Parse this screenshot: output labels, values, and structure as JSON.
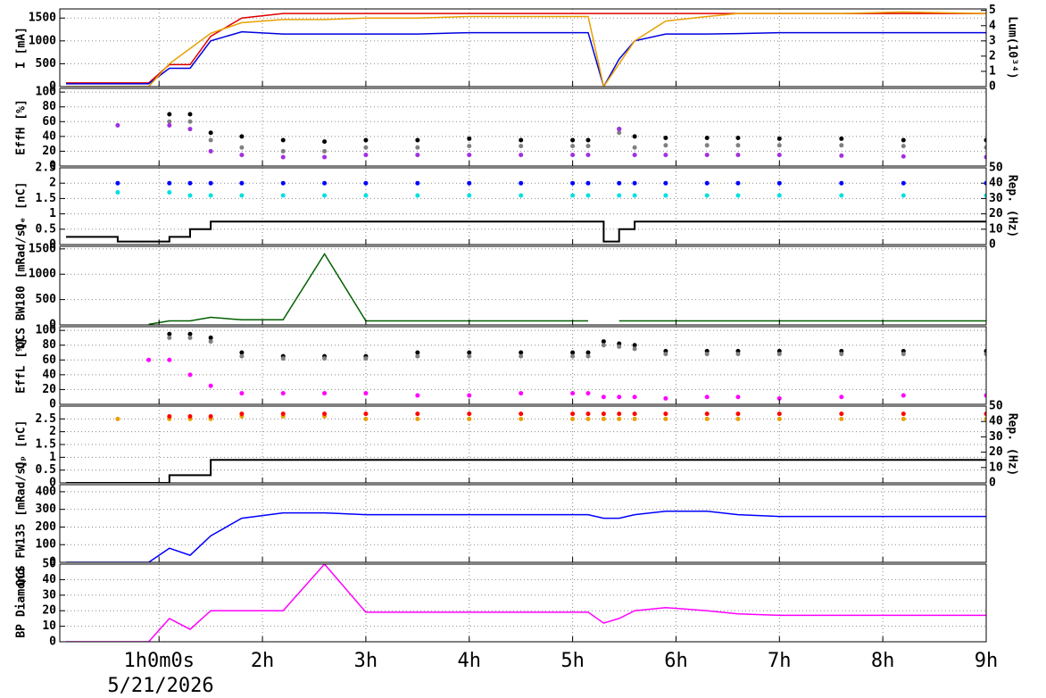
{
  "chart_data": [
    {
      "type": "line",
      "ylabel": "I [mA]",
      "y2label": "Lum(10³⁴)",
      "x": [
        0.1,
        0.6,
        0.9,
        1.1,
        1.3,
        1.5,
        1.8,
        2.2,
        2.6,
        3.0,
        3.5,
        4.0,
        4.5,
        5.0,
        5.15,
        5.3,
        5.45,
        5.6,
        5.9,
        6.3,
        6.6,
        7.0,
        7.6,
        8.2,
        9.0
      ],
      "xlim": [
        0.04,
        9
      ],
      "ylim": [
        0,
        1700
      ],
      "yticks": [
        0,
        500,
        1000,
        1500
      ],
      "y2lim": [
        0,
        5.1
      ],
      "y2ticks": [
        0,
        1,
        2,
        3,
        4,
        5
      ],
      "grid": true,
      "series": [
        {
          "color": "#e00000",
          "marker": "line",
          "values": [
            80,
            80,
            80,
            480,
            480,
            1100,
            1500,
            1600,
            1600,
            1600,
            1600,
            1600,
            1600,
            1600,
            1600,
            1600,
            1600,
            1600,
            1600,
            1600,
            1600,
            1600,
            1600,
            1600,
            1600
          ]
        },
        {
          "color": "#0000e0",
          "marker": "line",
          "values": [
            60,
            60,
            60,
            400,
            400,
            1000,
            1200,
            1150,
            1150,
            1150,
            1150,
            1180,
            1180,
            1180,
            1180,
            0,
            600,
            1000,
            1150,
            1150,
            1160,
            1180,
            1180,
            1180,
            1180
          ]
        },
        {
          "color": "#e8a000",
          "marker": "line",
          "axis": "y2",
          "values": [
            0,
            0,
            0,
            1.5,
            2.5,
            3.5,
            4.2,
            4.4,
            4.4,
            4.5,
            4.5,
            4.6,
            4.6,
            4.6,
            4.6,
            0,
            1.5,
            3.0,
            4.3,
            4.6,
            4.8,
            4.8,
            4.8,
            4.9,
            4.8
          ]
        }
      ]
    },
    {
      "type": "line",
      "ylabel": "EffH [%]",
      "x": [
        0.1,
        0.6,
        0.9,
        1.1,
        1.3,
        1.5,
        1.8,
        2.2,
        2.6,
        3.0,
        3.5,
        4.0,
        4.5,
        5.0,
        5.15,
        5.3,
        5.45,
        5.6,
        5.9,
        6.3,
        6.6,
        7.0,
        7.6,
        8.2,
        9.0
      ],
      "xlim": [
        0.04,
        9
      ],
      "ylim": [
        0,
        105
      ],
      "yticks": [
        0,
        20,
        40,
        60,
        80,
        100
      ],
      "grid": true,
      "series": [
        {
          "color": "#000000",
          "marker": "dot",
          "values": [
            null,
            null,
            null,
            70,
            70,
            45,
            40,
            35,
            33,
            35,
            35,
            37,
            35,
            35,
            35,
            null,
            50,
            40,
            38,
            38,
            38,
            37,
            37,
            35,
            35
          ]
        },
        {
          "color": "#808080",
          "marker": "dot",
          "values": [
            null,
            null,
            null,
            60,
            60,
            35,
            25,
            20,
            20,
            25,
            25,
            27,
            27,
            27,
            27,
            null,
            45,
            25,
            28,
            28,
            28,
            28,
            28,
            27,
            25
          ]
        },
        {
          "color": "#a030e0",
          "marker": "dot",
          "values": [
            null,
            55,
            null,
            55,
            50,
            20,
            15,
            12,
            12,
            15,
            15,
            15,
            15,
            15,
            15,
            null,
            50,
            15,
            15,
            15,
            15,
            15,
            14,
            13,
            12
          ]
        }
      ]
    },
    {
      "type": "line",
      "ylabel": "Qₑ [nC]",
      "y2label": "Rep. (Hz)",
      "x": [
        0.1,
        0.6,
        0.9,
        1.1,
        1.3,
        1.5,
        1.8,
        2.2,
        2.6,
        3.0,
        3.5,
        4.0,
        4.5,
        5.0,
        5.15,
        5.3,
        5.45,
        5.6,
        5.9,
        6.3,
        6.6,
        7.0,
        7.6,
        8.2,
        9.0
      ],
      "xlim": [
        0.04,
        9
      ],
      "ylim": [
        0,
        2.5
      ],
      "yticks": [
        0,
        0.5,
        1,
        1.5,
        2,
        2.5
      ],
      "y2lim": [
        0,
        50
      ],
      "y2ticks": [
        0,
        10,
        20,
        30,
        40,
        50
      ],
      "grid": true,
      "series": [
        {
          "color": "#0000ff",
          "marker": "dot",
          "values": [
            null,
            2.0,
            null,
            2.0,
            2.0,
            2.0,
            2.0,
            2.0,
            2.0,
            2.0,
            2.0,
            2.0,
            2.0,
            2.0,
            2.0,
            null,
            2.0,
            2.0,
            2.0,
            2.0,
            2.0,
            2.0,
            2.0,
            2.0,
            2.0
          ]
        },
        {
          "color": "#00e0e0",
          "marker": "dot",
          "values": [
            null,
            1.7,
            null,
            1.7,
            1.6,
            1.6,
            1.6,
            1.6,
            1.6,
            1.6,
            1.6,
            1.6,
            1.6,
            1.6,
            1.6,
            null,
            1.6,
            1.6,
            1.6,
            1.6,
            1.6,
            1.6,
            1.6,
            1.6,
            1.6
          ]
        },
        {
          "color": "#000000",
          "marker": "step",
          "axis": "y2",
          "values": [
            5,
            2,
            2,
            5,
            10,
            15,
            15,
            15,
            15,
            15,
            15,
            15,
            15,
            15,
            15,
            2,
            10,
            15,
            15,
            15,
            15,
            15,
            15,
            15,
            15
          ]
        }
      ]
    },
    {
      "type": "line",
      "ylabel": "QCS BW180 [mRad/s]",
      "x": [
        0.1,
        0.6,
        0.9,
        1.1,
        1.3,
        1.5,
        1.8,
        2.2,
        2.6,
        3.0,
        3.5,
        4.0,
        4.5,
        5.0,
        5.15,
        5.3,
        5.45,
        5.6,
        5.9,
        6.3,
        6.6,
        7.0,
        7.6,
        8.2,
        9.0
      ],
      "xlim": [
        0.04,
        9
      ],
      "ylim": [
        0,
        1550
      ],
      "yticks": [
        0,
        500,
        1000,
        1500
      ],
      "grid": true,
      "series": [
        {
          "color": "#006000",
          "marker": "line",
          "values": [
            null,
            null,
            10,
            80,
            80,
            150,
            100,
            100,
            1400,
            80,
            80,
            80,
            80,
            80,
            80,
            null,
            80,
            80,
            80,
            80,
            80,
            80,
            80,
            80,
            80
          ]
        }
      ]
    },
    {
      "type": "line",
      "ylabel": "EffL [%]",
      "x": [
        0.1,
        0.6,
        0.9,
        1.1,
        1.3,
        1.5,
        1.8,
        2.2,
        2.6,
        3.0,
        3.5,
        4.0,
        4.5,
        5.0,
        5.15,
        5.3,
        5.45,
        5.6,
        5.9,
        6.3,
        6.6,
        7.0,
        7.6,
        8.2,
        9.0
      ],
      "xlim": [
        0.04,
        9
      ],
      "ylim": [
        0,
        105
      ],
      "yticks": [
        0,
        20,
        40,
        60,
        80,
        100
      ],
      "grid": true,
      "series": [
        {
          "color": "#000000",
          "marker": "dot",
          "values": [
            null,
            null,
            null,
            95,
            95,
            90,
            70,
            65,
            65,
            65,
            70,
            70,
            70,
            70,
            70,
            85,
            82,
            80,
            72,
            72,
            72,
            72,
            72,
            72,
            72
          ]
        },
        {
          "color": "#808080",
          "marker": "dot",
          "values": [
            null,
            null,
            null,
            90,
            90,
            85,
            65,
            62,
            62,
            62,
            65,
            65,
            65,
            65,
            65,
            80,
            78,
            75,
            68,
            68,
            68,
            68,
            68,
            68,
            68
          ]
        },
        {
          "color": "#ff00ff",
          "marker": "dot",
          "values": [
            null,
            null,
            60,
            60,
            40,
            25,
            15,
            15,
            15,
            15,
            12,
            12,
            15,
            15,
            15,
            10,
            10,
            10,
            8,
            10,
            10,
            8,
            10,
            12,
            12
          ]
        }
      ]
    },
    {
      "type": "line",
      "ylabel": "Qₚ [nC]",
      "y2label": "Rep. (Hz)",
      "x": [
        0.1,
        0.6,
        0.9,
        1.1,
        1.3,
        1.5,
        1.8,
        2.2,
        2.6,
        3.0,
        3.5,
        4.0,
        4.5,
        5.0,
        5.15,
        5.3,
        5.45,
        5.6,
        5.9,
        6.3,
        6.6,
        7.0,
        7.6,
        8.2,
        9.0
      ],
      "xlim": [
        0.04,
        9
      ],
      "ylim": [
        0,
        3.0
      ],
      "yticks": [
        0,
        0.5,
        1,
        1.5,
        2,
        2.5
      ],
      "y2lim": [
        0,
        50
      ],
      "y2ticks": [
        0,
        10,
        20,
        30,
        40,
        50
      ],
      "grid": true,
      "series": [
        {
          "color": "#e8a000",
          "marker": "dot",
          "values": [
            null,
            2.5,
            null,
            2.5,
            2.5,
            2.5,
            2.6,
            2.6,
            2.6,
            2.5,
            2.5,
            2.5,
            2.5,
            2.5,
            2.5,
            2.5,
            2.5,
            2.5,
            2.5,
            2.5,
            2.5,
            2.5,
            2.5,
            2.5,
            2.5
          ]
        },
        {
          "color": "#ff0000",
          "marker": "dot",
          "values": [
            null,
            null,
            null,
            2.6,
            2.6,
            2.6,
            2.7,
            2.7,
            2.7,
            2.7,
            2.7,
            2.7,
            2.7,
            2.7,
            2.7,
            2.7,
            2.7,
            2.7,
            2.7,
            2.7,
            2.7,
            2.7,
            2.7,
            2.7,
            2.7
          ]
        },
        {
          "color": "#000000",
          "marker": "step",
          "axis": "y2",
          "values": [
            0,
            0,
            0,
            5,
            5,
            15,
            15,
            15,
            15,
            15,
            15,
            15,
            15,
            15,
            15,
            15,
            15,
            15,
            15,
            15,
            15,
            15,
            15,
            15,
            15
          ]
        }
      ]
    },
    {
      "type": "line",
      "ylabel": "QCS FW135 [mRad/s]",
      "x": [
        0.1,
        0.6,
        0.9,
        1.1,
        1.3,
        1.5,
        1.8,
        2.2,
        2.6,
        3.0,
        3.5,
        4.0,
        4.5,
        5.0,
        5.15,
        5.3,
        5.45,
        5.6,
        5.9,
        6.3,
        6.6,
        7.0,
        7.6,
        8.2,
        9.0
      ],
      "xlim": [
        0.04,
        9
      ],
      "ylim": [
        0,
        440
      ],
      "yticks": [
        0,
        100,
        200,
        300,
        400
      ],
      "grid": true,
      "series": [
        {
          "color": "#0000ff",
          "marker": "line",
          "values": [
            0,
            0,
            0,
            80,
            40,
            150,
            250,
            280,
            280,
            270,
            270,
            270,
            270,
            270,
            270,
            250,
            250,
            270,
            290,
            290,
            270,
            260,
            260,
            260,
            260
          ]
        }
      ]
    },
    {
      "type": "line",
      "ylabel": "BP Diamond",
      "x_label": "5/21/2026",
      "x": [
        0.1,
        0.6,
        0.9,
        1.1,
        1.3,
        1.5,
        1.8,
        2.2,
        2.6,
        3.0,
        3.5,
        4.0,
        4.5,
        5.0,
        5.15,
        5.3,
        5.45,
        5.6,
        5.9,
        6.3,
        6.6,
        7.0,
        7.6,
        8.2,
        9.0
      ],
      "xlim": [
        0.04,
        9
      ],
      "ylim": [
        0,
        50
      ],
      "yticks": [
        0,
        10,
        20,
        30,
        40,
        50
      ],
      "grid": true,
      "xticks": [
        {
          "value": 1,
          "label": "1h0m0s"
        },
        {
          "value": 2,
          "label": "2h"
        },
        {
          "value": 3,
          "label": "3h"
        },
        {
          "value": 4,
          "label": "4h"
        },
        {
          "value": 5,
          "label": "5h"
        },
        {
          "value": 6,
          "label": "6h"
        },
        {
          "value": 7,
          "label": "7h"
        },
        {
          "value": 8,
          "label": "8h"
        },
        {
          "value": 9,
          "label": "9h"
        }
      ],
      "series": [
        {
          "color": "#ff00ff",
          "marker": "line",
          "values": [
            0,
            0,
            0,
            15,
            8,
            20,
            20,
            20,
            50,
            19,
            19,
            19,
            19,
            19,
            19,
            12,
            15,
            20,
            22,
            20,
            18,
            17,
            17,
            17,
            17
          ]
        }
      ]
    }
  ]
}
